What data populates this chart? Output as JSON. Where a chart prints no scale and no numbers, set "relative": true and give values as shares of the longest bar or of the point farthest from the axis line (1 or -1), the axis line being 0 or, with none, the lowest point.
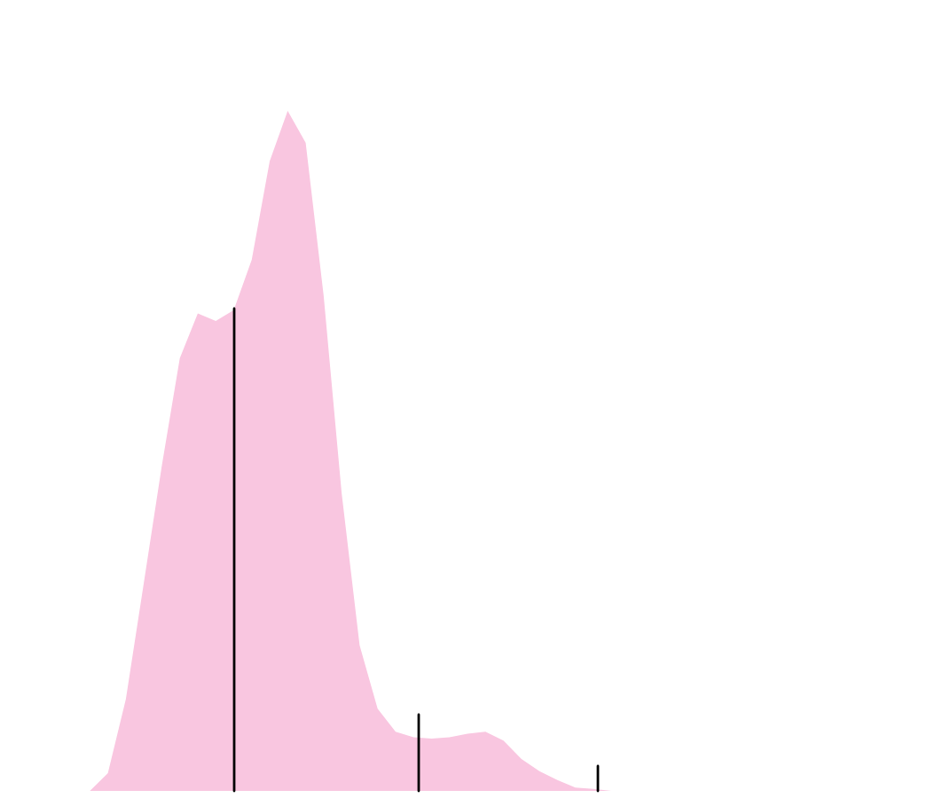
{
  "chart_data": {
    "type": "area",
    "relative": true,
    "categories": [
      null,
      null,
      null,
      null,
      null,
      null,
      null,
      null,
      null,
      null,
      null,
      null,
      null,
      null,
      null,
      null,
      null,
      null,
      null,
      null,
      null,
      null,
      null,
      null,
      null,
      null,
      null,
      null,
      null,
      null,
      null,
      null,
      null,
      null,
      null,
      null,
      null,
      null,
      null,
      null,
      null,
      null,
      null,
      null,
      null,
      null,
      null,
      null,
      null,
      null,
      null,
      null,
      null
    ],
    "series": [
      {
        "color": "#f9c6e0",
        "values": [
          0,
          0,
          0,
          0,
          0,
          0,
          0.026,
          0.135,
          0.306,
          0.478,
          0.636,
          0.702,
          0.691,
          0.707,
          0.781,
          0.926,
          1,
          0.953,
          0.728,
          0.438,
          0.214,
          0.121,
          0.087,
          0.079,
          0.077,
          0.079,
          0.084,
          0.087,
          0.074,
          0.047,
          0.029,
          0.016,
          0.005,
          0.003,
          0,
          0,
          0,
          0,
          0,
          0,
          0,
          0,
          0,
          0,
          0,
          0,
          0,
          0,
          0,
          0,
          0,
          0,
          0
        ]
      }
    ]
  }
}
